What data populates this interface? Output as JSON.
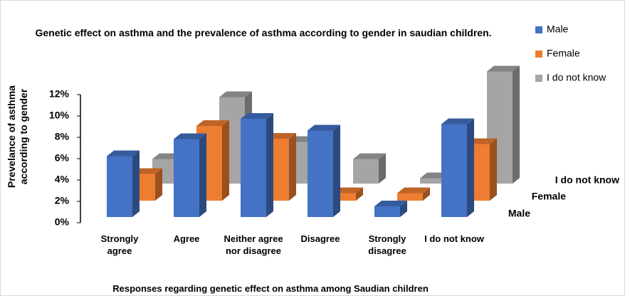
{
  "chart_data": {
    "type": "bar3d",
    "title": "Genetic effect on asthma and the prevalence of asthma according to gender in saudian children.",
    "x_label": "Responses regarding genetic effect on asthma among Saudian children",
    "y_label": "Prevelance of asthma according to gender",
    "categories": [
      "Strongly agree",
      "Agree",
      "Neither agree nor disagree",
      "Disagree",
      "Strongly disagree",
      "I do not know"
    ],
    "series": [
      {
        "name": "Male",
        "color": "#4472c4",
        "values": [
          5.7,
          7.3,
          9.2,
          8.1,
          1.0,
          8.7
        ]
      },
      {
        "name": "Female",
        "color": "#ed7d31",
        "values": [
          2.5,
          7.0,
          5.8,
          0.7,
          0.7,
          5.3
        ]
      },
      {
        "name": "I do not know",
        "color": "#a5a5a5",
        "values": [
          2.3,
          8.1,
          3.9,
          2.3,
          0.5,
          10.5
        ]
      }
    ],
    "ylim": [
      0,
      12
    ],
    "yticks": [
      {
        "value": 0,
        "label": "0%"
      },
      {
        "value": 2,
        "label": "2%"
      },
      {
        "value": 4,
        "label": "4%"
      },
      {
        "value": 6,
        "label": "6%"
      },
      {
        "value": 8,
        "label": "8%"
      },
      {
        "value": 10,
        "label": "10%"
      },
      {
        "value": 12,
        "label": "12%"
      }
    ],
    "legend": "top-right"
  }
}
